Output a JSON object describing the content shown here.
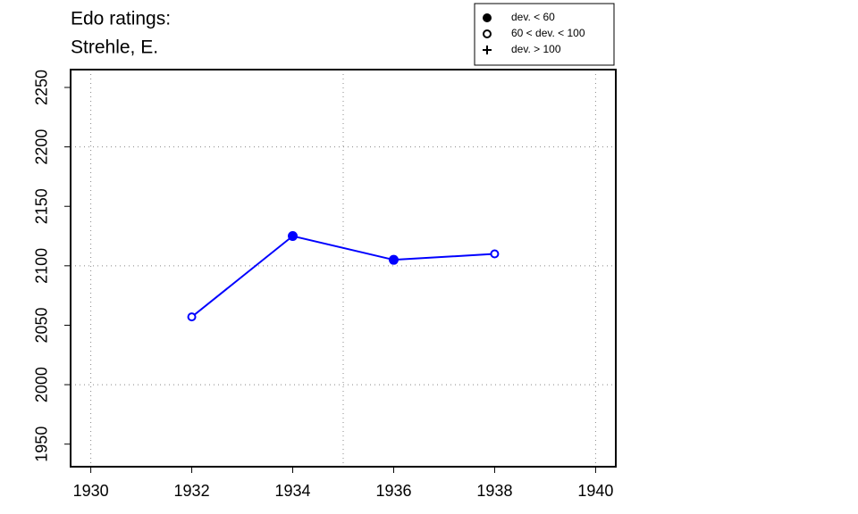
{
  "chart_data": {
    "type": "line",
    "title": [
      "Edo ratings:",
      "Strehle, E."
    ],
    "x": [
      1932,
      1934,
      1936,
      1938
    ],
    "series": [
      {
        "color": "#0000ff",
        "values": [
          2057,
          2125,
          2105,
          2110
        ],
        "marker_class": [
          1,
          0,
          0,
          1
        ]
      }
    ],
    "xlim": [
      1929.6,
      1940.4
    ],
    "ylim": [
      1931,
      2265
    ],
    "xticks": [
      1930,
      1932,
      1934,
      1936,
      1938,
      1940
    ],
    "yticks": [
      1950,
      2000,
      2050,
      2100,
      2150,
      2200,
      2250
    ],
    "xgrid": [
      1930,
      1935,
      1940
    ],
    "ygrid": [
      2000,
      2100,
      2200
    ],
    "grid": true,
    "legend_position": "top-right",
    "legend": [
      {
        "label": "dev. < 60",
        "marker": "filled"
      },
      {
        "label": "60 < dev. < 100",
        "marker": "open"
      },
      {
        "label": "dev. > 100",
        "marker": "plus"
      }
    ]
  }
}
